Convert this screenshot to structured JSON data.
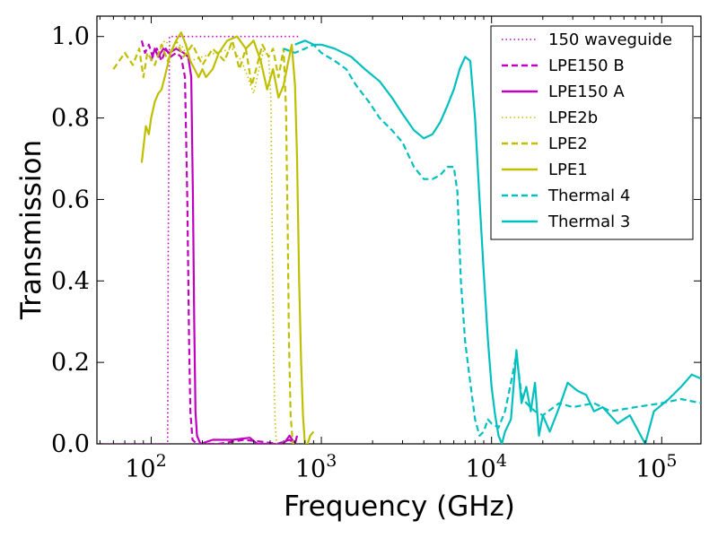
{
  "chart_data": {
    "type": "line",
    "title": "",
    "xlabel": "Frequency (GHz)",
    "ylabel": "Transmission",
    "xscale": "log",
    "xlim": [
      48,
      170000
    ],
    "ylim": [
      0,
      1.05
    ],
    "grid": false,
    "legend_position": "top-right",
    "x_ticks": [
      {
        "value": 100,
        "base": "10",
        "exp": "2"
      },
      {
        "value": 1000,
        "base": "10",
        "exp": "3"
      },
      {
        "value": 10000,
        "base": "10",
        "exp": "4"
      },
      {
        "value": 100000,
        "base": "10",
        "exp": "5"
      }
    ],
    "y_ticks": [
      {
        "value": 0.0,
        "label": "0.0"
      },
      {
        "value": 0.2,
        "label": "0.2"
      },
      {
        "value": 0.4,
        "label": "0.4"
      },
      {
        "value": 0.6,
        "label": "0.6"
      },
      {
        "value": 0.8,
        "label": "0.8"
      },
      {
        "value": 1.0,
        "label": "1.0"
      }
    ],
    "series": [
      {
        "name": "150 waveguide",
        "color": "#bf00bf",
        "style": "dotted",
        "points": [
          [
            48,
            0.0
          ],
          [
            125,
            0.0
          ],
          [
            126,
            0.5
          ],
          [
            128,
            1.0
          ],
          [
            300,
            1.0
          ],
          [
            500,
            1.0
          ],
          [
            750,
            1.0
          ]
        ]
      },
      {
        "name": "LPE150 B",
        "color": "#bf00bf",
        "style": "dashed",
        "points": [
          [
            88,
            0.99
          ],
          [
            92,
            0.96
          ],
          [
            97,
            0.98
          ],
          [
            102,
            0.95
          ],
          [
            108,
            0.97
          ],
          [
            115,
            0.94
          ],
          [
            122,
            0.97
          ],
          [
            130,
            0.95
          ],
          [
            140,
            0.96
          ],
          [
            150,
            0.95
          ],
          [
            158,
            0.9
          ],
          [
            163,
            0.6
          ],
          [
            167,
            0.25
          ],
          [
            170,
            0.08
          ],
          [
            175,
            0.01
          ],
          [
            185,
            0.0
          ],
          [
            250,
            0.0
          ],
          [
            350,
            0.01
          ],
          [
            450,
            0.005
          ],
          [
            550,
            0.0
          ],
          [
            650,
            0.01
          ],
          [
            700,
            0.0
          ]
        ]
      },
      {
        "name": "LPE150 A",
        "color": "#bf00bf",
        "style": "solid",
        "points": [
          [
            100,
            0.94
          ],
          [
            105,
            0.97
          ],
          [
            110,
            0.95
          ],
          [
            118,
            0.97
          ],
          [
            128,
            0.96
          ],
          [
            140,
            0.97
          ],
          [
            155,
            0.96
          ],
          [
            165,
            0.95
          ],
          [
            172,
            0.9
          ],
          [
            176,
            0.6
          ],
          [
            179,
            0.3
          ],
          [
            182,
            0.08
          ],
          [
            186,
            0.02
          ],
          [
            195,
            0.0
          ],
          [
            230,
            0.01
          ],
          [
            300,
            0.01
          ],
          [
            380,
            0.015
          ],
          [
            420,
            0.0
          ],
          [
            500,
            0.0
          ],
          [
            600,
            0.0
          ],
          [
            650,
            0.02
          ],
          [
            700,
            0.0
          ],
          [
            720,
            0.02
          ]
        ]
      },
      {
        "name": "LPE2b",
        "color": "#bfbf00",
        "style": "dotted",
        "points": [
          [
            110,
            0.96
          ],
          [
            120,
            0.99
          ],
          [
            135,
            0.97
          ],
          [
            150,
            0.98
          ],
          [
            170,
            0.94
          ],
          [
            200,
            0.95
          ],
          [
            240,
            0.96
          ],
          [
            300,
            0.97
          ],
          [
            340,
            0.94
          ],
          [
            370,
            0.9
          ],
          [
            400,
            0.86
          ],
          [
            430,
            0.92
          ],
          [
            460,
            0.97
          ],
          [
            490,
            0.95
          ],
          [
            505,
            0.85
          ],
          [
            515,
            0.5
          ],
          [
            525,
            0.2
          ],
          [
            535,
            0.05
          ],
          [
            545,
            0.0
          ],
          [
            560,
            0.0
          ]
        ]
      },
      {
        "name": "LPE2",
        "color": "#bfbf00",
        "style": "dashed",
        "points": [
          [
            60,
            0.92
          ],
          [
            70,
            0.96
          ],
          [
            78,
            0.93
          ],
          [
            85,
            0.97
          ],
          [
            90,
            0.9
          ],
          [
            95,
            0.96
          ],
          [
            105,
            0.93
          ],
          [
            115,
            0.98
          ],
          [
            125,
            0.94
          ],
          [
            140,
            0.99
          ],
          [
            155,
            0.95
          ],
          [
            175,
            0.98
          ],
          [
            200,
            0.93
          ],
          [
            230,
            0.97
          ],
          [
            270,
            0.94
          ],
          [
            300,
            0.99
          ],
          [
            330,
            0.92
          ],
          [
            360,
            0.97
          ],
          [
            390,
            0.88
          ],
          [
            420,
            0.93
          ],
          [
            450,
            0.98
          ],
          [
            490,
            0.95
          ],
          [
            520,
            0.97
          ],
          [
            560,
            0.9
          ],
          [
            600,
            0.97
          ],
          [
            620,
            0.82
          ],
          [
            635,
            0.5
          ],
          [
            645,
            0.25
          ],
          [
            660,
            0.07
          ],
          [
            680,
            0.0
          ],
          [
            700,
            0.0
          ]
        ]
      },
      {
        "name": "LPE1",
        "color": "#bfbf00",
        "style": "solid",
        "points": [
          [
            88,
            0.69
          ],
          [
            93,
            0.78
          ],
          [
            97,
            0.76
          ],
          [
            100,
            0.8
          ],
          [
            105,
            0.84
          ],
          [
            110,
            0.86
          ],
          [
            115,
            0.87
          ],
          [
            120,
            0.9
          ],
          [
            125,
            0.93
          ],
          [
            130,
            0.96
          ],
          [
            140,
            0.99
          ],
          [
            150,
            1.01
          ],
          [
            160,
            0.98
          ],
          [
            170,
            0.94
          ],
          [
            180,
            0.92
          ],
          [
            190,
            0.9
          ],
          [
            200,
            0.92
          ],
          [
            210,
            0.9
          ],
          [
            230,
            0.92
          ],
          [
            250,
            0.96
          ],
          [
            280,
            0.99
          ],
          [
            320,
            1.0
          ],
          [
            360,
            0.97
          ],
          [
            400,
            0.99
          ],
          [
            440,
            0.94
          ],
          [
            480,
            0.87
          ],
          [
            520,
            0.92
          ],
          [
            560,
            0.85
          ],
          [
            600,
            0.88
          ],
          [
            640,
            0.94
          ],
          [
            670,
            0.98
          ],
          [
            700,
            0.88
          ],
          [
            720,
            0.7
          ],
          [
            740,
            0.4
          ],
          [
            760,
            0.2
          ],
          [
            780,
            0.07
          ],
          [
            800,
            0.0
          ],
          [
            830,
            0.0
          ],
          [
            860,
            0.02
          ],
          [
            900,
            0.03
          ]
        ]
      },
      {
        "name": "Thermal 4",
        "color": "#00bfbf",
        "style": "dashed",
        "points": [
          [
            600,
            0.97
          ],
          [
            700,
            0.96
          ],
          [
            800,
            0.97
          ],
          [
            900,
            0.98
          ],
          [
            1000,
            0.96
          ],
          [
            1200,
            0.94
          ],
          [
            1400,
            0.92
          ],
          [
            1600,
            0.88
          ],
          [
            1900,
            0.84
          ],
          [
            2200,
            0.8
          ],
          [
            2600,
            0.77
          ],
          [
            3000,
            0.74
          ],
          [
            3500,
            0.68
          ],
          [
            4000,
            0.65
          ],
          [
            4500,
            0.65
          ],
          [
            5000,
            0.66
          ],
          [
            5500,
            0.68
          ],
          [
            6000,
            0.68
          ],
          [
            6300,
            0.62
          ],
          [
            6600,
            0.4
          ],
          [
            7000,
            0.25
          ],
          [
            7500,
            0.15
          ],
          [
            8000,
            0.06
          ],
          [
            8500,
            0.02
          ],
          [
            9000,
            0.03
          ],
          [
            9500,
            0.06
          ],
          [
            10000,
            0.05
          ],
          [
            11000,
            0.04
          ],
          [
            12000,
            0.08
          ],
          [
            13000,
            0.15
          ],
          [
            14000,
            0.22
          ],
          [
            15000,
            0.12
          ],
          [
            16000,
            0.1
          ],
          [
            18000,
            0.08
          ],
          [
            20000,
            0.07
          ],
          [
            25000,
            0.1
          ],
          [
            30000,
            0.09
          ],
          [
            40000,
            0.1
          ],
          [
            50000,
            0.08
          ],
          [
            70000,
            0.09
          ],
          [
            100000,
            0.1
          ],
          [
            130000,
            0.11
          ],
          [
            170000,
            0.1
          ]
        ]
      },
      {
        "name": "Thermal 3",
        "color": "#00bfbf",
        "style": "solid",
        "points": [
          [
            700,
            0.98
          ],
          [
            800,
            0.99
          ],
          [
            900,
            0.98
          ],
          [
            1000,
            0.98
          ],
          [
            1200,
            0.97
          ],
          [
            1500,
            0.95
          ],
          [
            1800,
            0.92
          ],
          [
            2200,
            0.89
          ],
          [
            2600,
            0.85
          ],
          [
            3000,
            0.81
          ],
          [
            3500,
            0.77
          ],
          [
            4000,
            0.75
          ],
          [
            4500,
            0.76
          ],
          [
            5000,
            0.79
          ],
          [
            5500,
            0.83
          ],
          [
            6000,
            0.87
          ],
          [
            6500,
            0.92
          ],
          [
            7000,
            0.95
          ],
          [
            7500,
            0.94
          ],
          [
            8000,
            0.8
          ],
          [
            8500,
            0.6
          ],
          [
            9000,
            0.42
          ],
          [
            9500,
            0.26
          ],
          [
            10000,
            0.14
          ],
          [
            10500,
            0.07
          ],
          [
            11000,
            0.02
          ],
          [
            11500,
            0.0
          ],
          [
            12000,
            0.03
          ],
          [
            13000,
            0.06
          ],
          [
            14000,
            0.23
          ],
          [
            15000,
            0.1
          ],
          [
            16000,
            0.14
          ],
          [
            17000,
            0.08
          ],
          [
            18000,
            0.15
          ],
          [
            19000,
            0.02
          ],
          [
            20000,
            0.07
          ],
          [
            22000,
            0.03
          ],
          [
            25000,
            0.09
          ],
          [
            28000,
            0.15
          ],
          [
            32000,
            0.13
          ],
          [
            36000,
            0.12
          ],
          [
            40000,
            0.08
          ],
          [
            45000,
            0.09
          ],
          [
            55000,
            0.05
          ],
          [
            65000,
            0.07
          ],
          [
            80000,
            0.0
          ],
          [
            90000,
            0.08
          ],
          [
            110000,
            0.11
          ],
          [
            130000,
            0.14
          ],
          [
            150000,
            0.17
          ],
          [
            170000,
            0.16
          ]
        ]
      }
    ]
  }
}
